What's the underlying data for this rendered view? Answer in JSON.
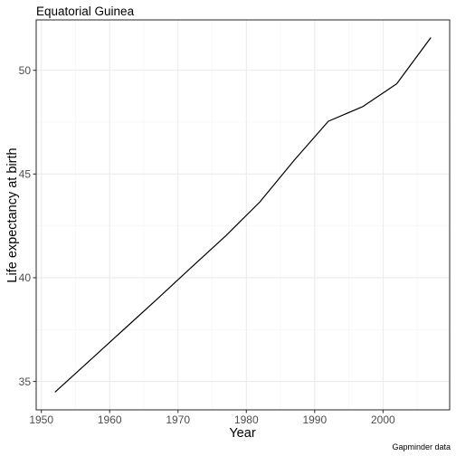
{
  "chart_data": {
    "type": "line",
    "title": "Equatorial Guinea",
    "xlabel": "Year",
    "ylabel": "Life expectancy at birth",
    "caption": "Gapminder data",
    "x": [
      1952,
      1957,
      1962,
      1967,
      1972,
      1977,
      1982,
      1987,
      1992,
      1997,
      2002,
      2007
    ],
    "series": [
      {
        "values": [
          34.482,
          35.983,
          37.485,
          38.987,
          40.516,
          42.024,
          43.662,
          45.664,
          47.545,
          48.245,
          49.348,
          51.579
        ]
      }
    ],
    "xlim": [
      1949.25,
      2009.75
    ],
    "ylim": [
      33.63,
      52.43
    ],
    "xticks": [
      1950,
      1960,
      1970,
      1980,
      1990,
      2000
    ],
    "yticks": [
      35,
      40,
      45,
      50
    ],
    "grid": true,
    "line_color": "#000000"
  }
}
